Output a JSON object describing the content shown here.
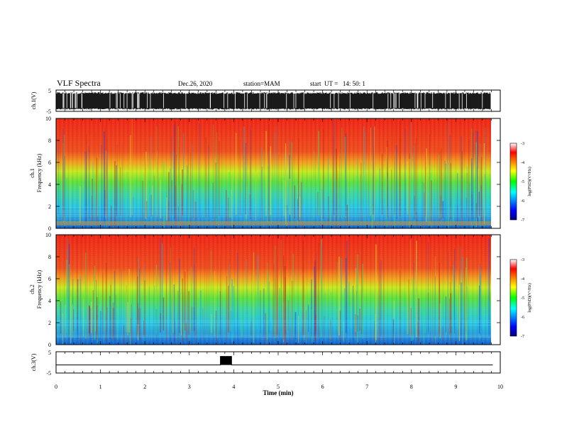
{
  "header": {
    "title": "VLF Spectra",
    "date": "Dec.26, 2020",
    "station": "station=MAM",
    "start": "start  UT =   14: 50: 1"
  },
  "chart_data": [
    {
      "type": "line",
      "panel": "ch1-waveform",
      "ylabel": "ch.1(V)",
      "ylim": [
        -5,
        5
      ],
      "yticks": [
        "5",
        "-5"
      ],
      "description_values": "dense oscillating voltage trace filling roughly -4 to 4 V across 0–9.8 min"
    },
    {
      "type": "heatmap",
      "panel": "ch1-spectrogram",
      "ylabel_lines": [
        "ch.1",
        "Frequency (kHz)"
      ],
      "ylim": [
        0,
        10
      ],
      "yticks": [
        "0",
        "2",
        "4",
        "6",
        "8",
        "10"
      ],
      "colorbar": {
        "label": "log(PSD)(V²/Hz)",
        "range": [
          -7,
          -3
        ],
        "ticks": [
          "-3",
          "-4",
          "-5",
          "-6",
          "-7"
        ]
      }
    },
    {
      "type": "heatmap",
      "panel": "ch2-spectrogram",
      "ylabel_lines": [
        "ch.2",
        "Frequency (kHz)"
      ],
      "ylim": [
        0,
        10
      ],
      "yticks": [
        "0",
        "2",
        "4",
        "6",
        "8",
        "10"
      ],
      "colorbar": {
        "label": "log(PSD)(V²/Hz)",
        "range": [
          -7,
          -3
        ],
        "ticks": [
          "-3",
          "-4",
          "-5",
          "-6",
          "-7"
        ]
      }
    },
    {
      "type": "line",
      "panel": "ch3-signal",
      "ylabel": "ch.3(V)",
      "ylim": [
        -5,
        5
      ],
      "yticks": [
        "5",
        "-5"
      ],
      "x": [
        0,
        3.7,
        3.7,
        3.95,
        3.95,
        9.83
      ],
      "y": [
        -1.2,
        -1.2,
        2.8,
        2.8,
        -1.2,
        -1.2
      ]
    }
  ],
  "xaxis": {
    "label": "Time  (min)",
    "range": [
      0,
      10
    ],
    "ticks": [
      "0",
      "1",
      "2",
      "3",
      "4",
      "5",
      "6",
      "7",
      "8",
      "9",
      "10"
    ]
  }
}
